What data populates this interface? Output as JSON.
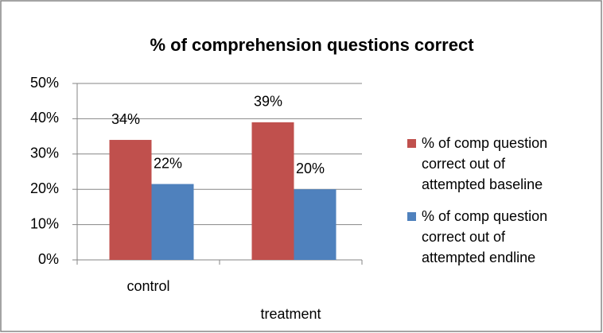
{
  "chart_data": {
    "type": "bar",
    "title": "% of comprehension questions correct",
    "categories": [
      "control",
      "treatment"
    ],
    "series": [
      {
        "name": "% of comp question correct out of attempted baseline",
        "color": "#c0504d",
        "values": [
          34,
          39
        ],
        "value_labels": [
          "34%",
          "39%"
        ]
      },
      {
        "name": "% of comp question correct out of attempted endline",
        "color": "#4f81bd",
        "values": [
          21.5,
          20
        ],
        "value_labels": [
          "22%",
          "20%"
        ]
      }
    ],
    "ylim": [
      0,
      50
    ],
    "yticks": [
      {
        "value": 0,
        "label": "0%"
      },
      {
        "value": 10,
        "label": "10%"
      },
      {
        "value": 20,
        "label": "20%"
      },
      {
        "value": 30,
        "label": "30%"
      },
      {
        "value": 40,
        "label": "40%"
      },
      {
        "value": 50,
        "label": "50%"
      }
    ],
    "grid": true,
    "legend": "right"
  }
}
